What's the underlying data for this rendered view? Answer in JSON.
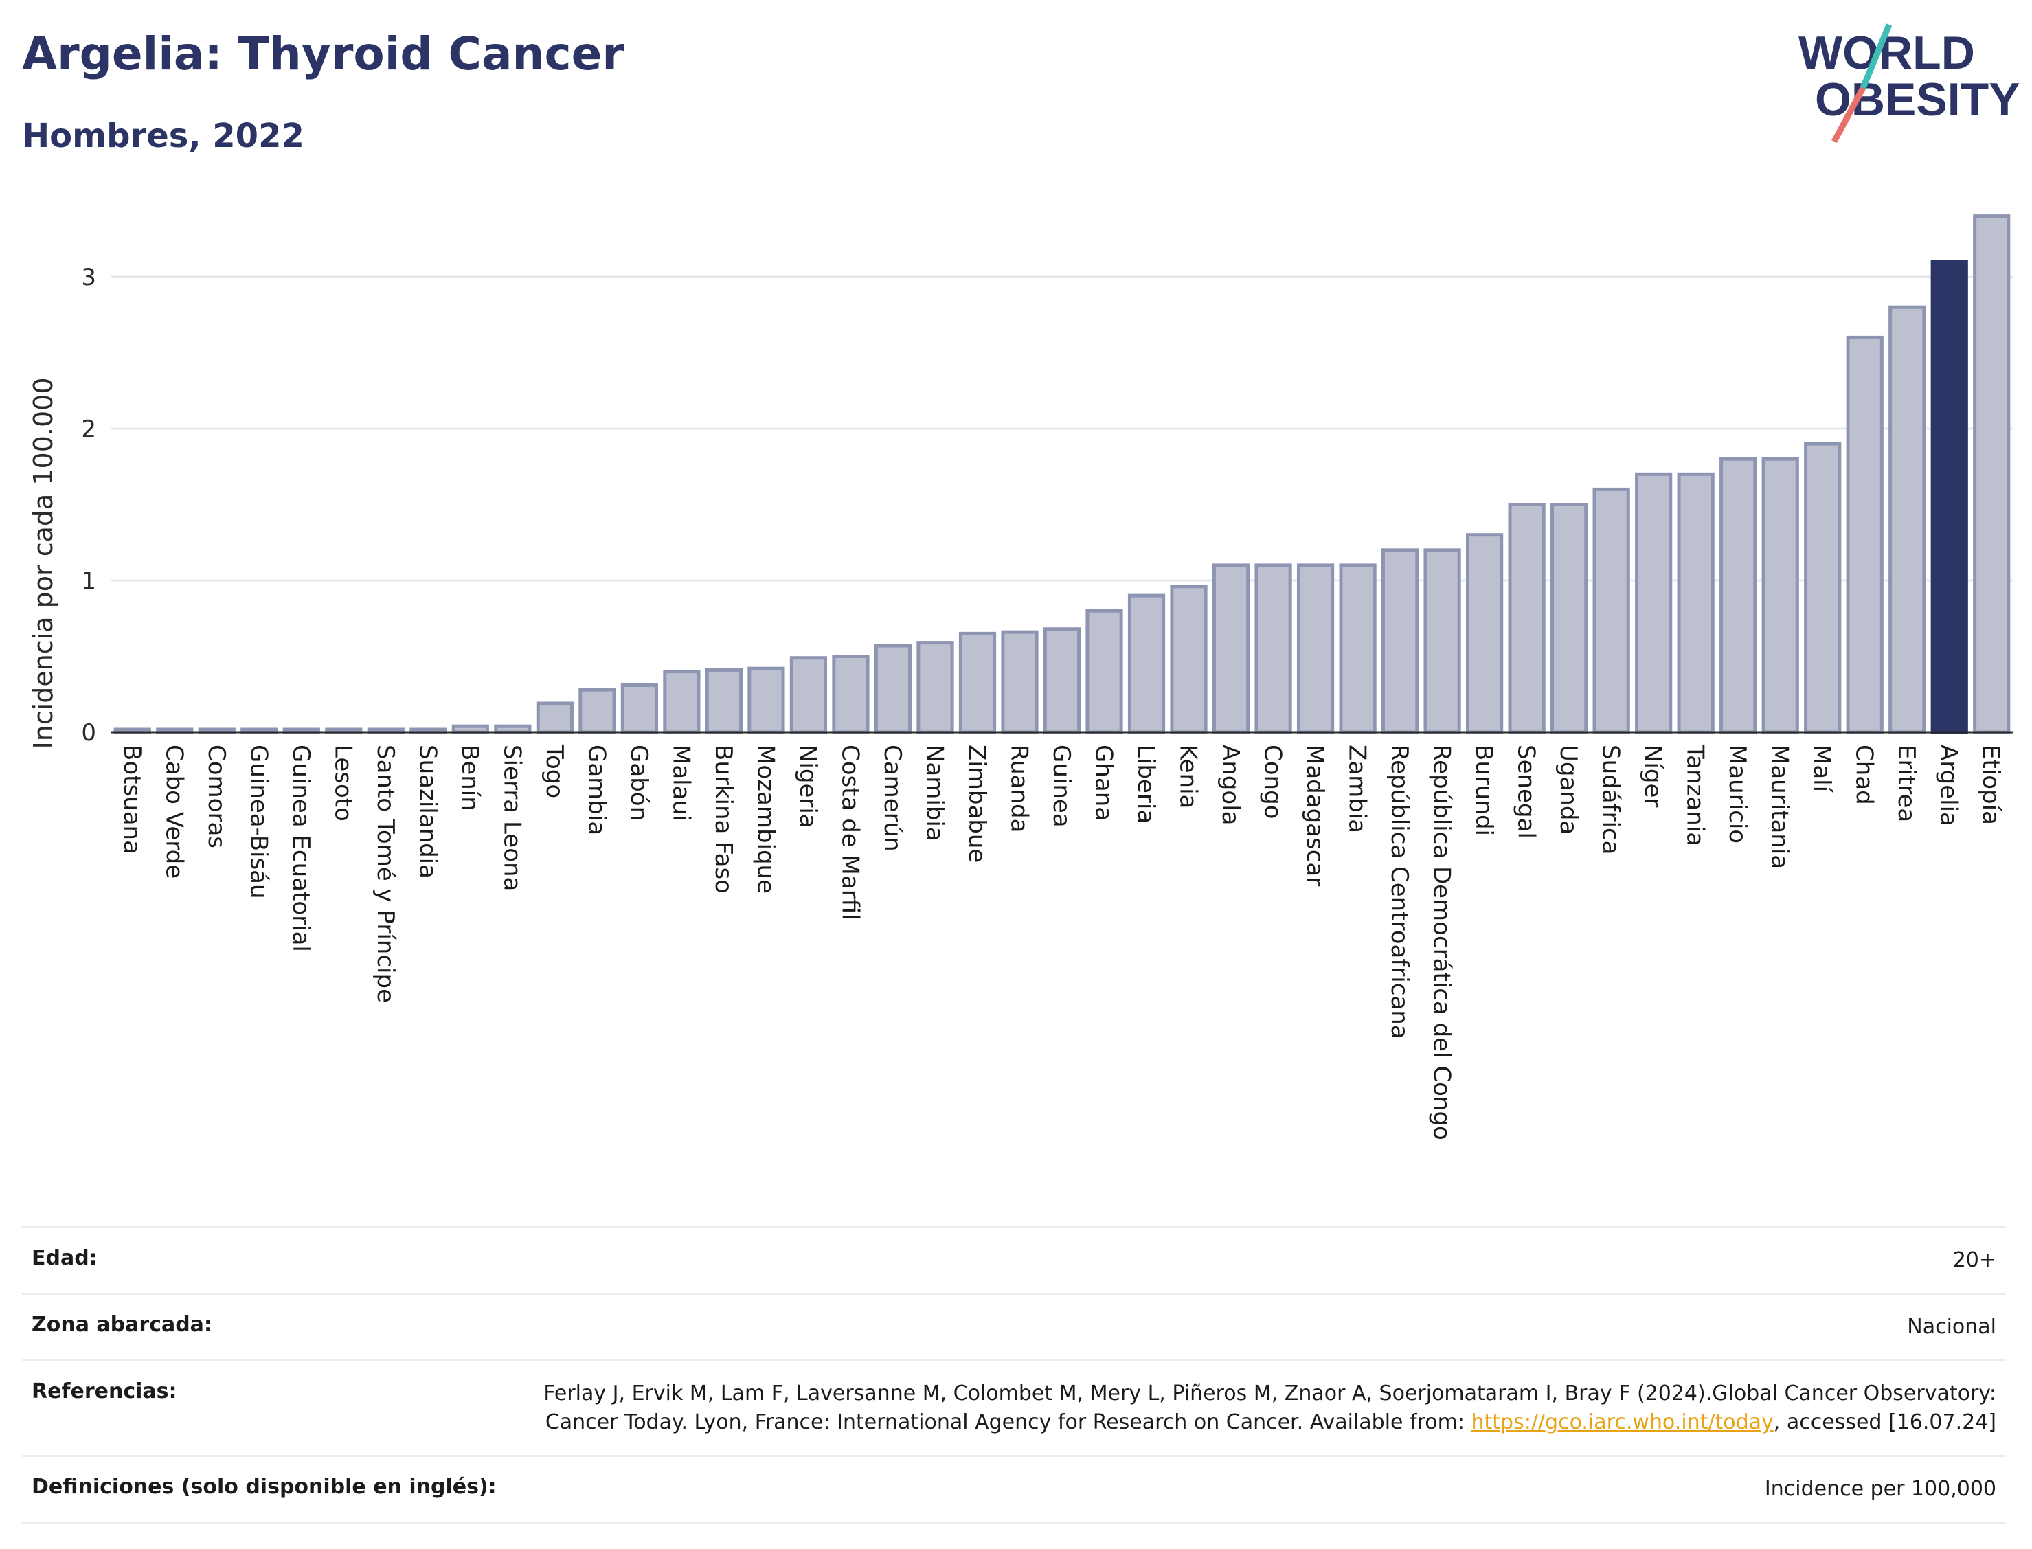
{
  "header": {
    "title": "Argelia: Thyroid Cancer",
    "subtitle": "Hombres, 2022"
  },
  "logo": {
    "line1": "WORLD",
    "line2": "OBESITY"
  },
  "colors": {
    "bar": "#bcc0cf",
    "bar_border": "#8e95b3",
    "highlight": "#2b3464",
    "grid": "#e6e8ee"
  },
  "chart_data": {
    "type": "bar",
    "title": "",
    "ylabel": "Incidencia por cada 100.000",
    "xlabel": "",
    "ylim": [
      0,
      3.5
    ],
    "yticks": [
      0,
      1,
      2,
      3
    ],
    "grid": true,
    "highlight": "Argelia",
    "categories": [
      "Botsuana",
      "Cabo Verde",
      "Comoras",
      "Guinea-Bisáu",
      "Guinea Ecuatorial",
      "Lesoto",
      "Santo Tomé y Príncipe",
      "Suazilandia",
      "Benín",
      "Sierra Leona",
      "Togo",
      "Gambia",
      "Gabón",
      "Malaui",
      "Burkina Faso",
      "Mozambique",
      "Nigeria",
      "Costa de Marfil",
      "Camerún",
      "Namibia",
      "Zimbabue",
      "Ruanda",
      "Guinea",
      "Ghana",
      "Liberia",
      "Kenia",
      "Angola",
      "Congo",
      "Madagascar",
      "Zambia",
      "República Centroafricana",
      "República Democrática del Congo",
      "Burundi",
      "Senegal",
      "Uganda",
      "Sudáfrica",
      "Níger",
      "Tanzania",
      "Mauricio",
      "Mauritania",
      "Malí",
      "Chad",
      "Eritrea",
      "Argelia",
      "Etiopía"
    ],
    "values": [
      0,
      0,
      0,
      0,
      0,
      0,
      0,
      0,
      0.04,
      0.04,
      0.19,
      0.28,
      0.31,
      0.4,
      0.41,
      0.42,
      0.49,
      0.5,
      0.57,
      0.59,
      0.65,
      0.66,
      0.68,
      0.8,
      0.9,
      0.96,
      1.1,
      1.1,
      1.1,
      1.1,
      1.2,
      1.2,
      1.3,
      1.5,
      1.5,
      1.6,
      1.7,
      1.7,
      1.8,
      1.8,
      1.9,
      2.6,
      2.8,
      3.1,
      3.4
    ]
  },
  "info": {
    "rows": [
      {
        "label": "Edad:",
        "value": "20+"
      },
      {
        "label": "Zona abarcada:",
        "value": "Nacional"
      },
      {
        "label": "Referencias:",
        "value_prefix": "Ferlay J, Ervik M, Lam F, Laversanne M, Colombet M, Mery L, Piñeros M, Znaor A, Soerjomataram I, Bray F (2024).Global Cancer Observatory: Cancer Today. Lyon, France: International Agency for Research on Cancer. Available from: ",
        "link": "https://gco.iarc.who.int/today",
        "value_suffix": ", accessed [16.07.24]"
      },
      {
        "label": "Definiciones (solo disponible en inglés):",
        "value": "Incidence per 100,000"
      }
    ]
  }
}
